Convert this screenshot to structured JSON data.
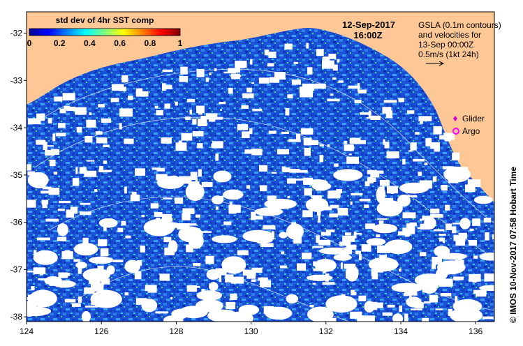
{
  "colorbar": {
    "title": "std dev of 4hr SST comp",
    "ticks": [
      "0",
      "0.2",
      "0.4",
      "0.6",
      "0.8",
      "1"
    ],
    "range": [
      0,
      1
    ],
    "colors": [
      "#00008f",
      "#0000ff",
      "#0080ff",
      "#00ffff",
      "#80ff80",
      "#ffff00",
      "#ff8000",
      "#ff0000",
      "#800000"
    ]
  },
  "timestamp": {
    "date": "12-Sep-2017",
    "time": "16:00Z"
  },
  "gsla_legend": {
    "line1": "GSLA (0.1m contours)",
    "line2": "and velocities for",
    "line3": "13-Sep 00:00Z",
    "line4": "0.5m/s (1kt 24h)"
  },
  "markers": [
    {
      "label": "Glider",
      "symbol": "diamond",
      "color": "#d000d0"
    },
    {
      "label": "Argo",
      "symbol": "circle",
      "color": "#ff00ff"
    }
  ],
  "credit": "© IMOS 10-Nov-2017 07:58 Hobart Time",
  "axes": {
    "x_ticks": [
      "124",
      "126",
      "128",
      "130",
      "132",
      "134",
      "136"
    ],
    "y_ticks": [
      "-32",
      "-33",
      "-34",
      "-35",
      "-36",
      "-37",
      "-38"
    ],
    "x_range": [
      124,
      136.5
    ],
    "y_range": [
      -38.1,
      -31.55
    ]
  },
  "colors": {
    "land": "#fdc896",
    "no_data": "#ffffff"
  }
}
